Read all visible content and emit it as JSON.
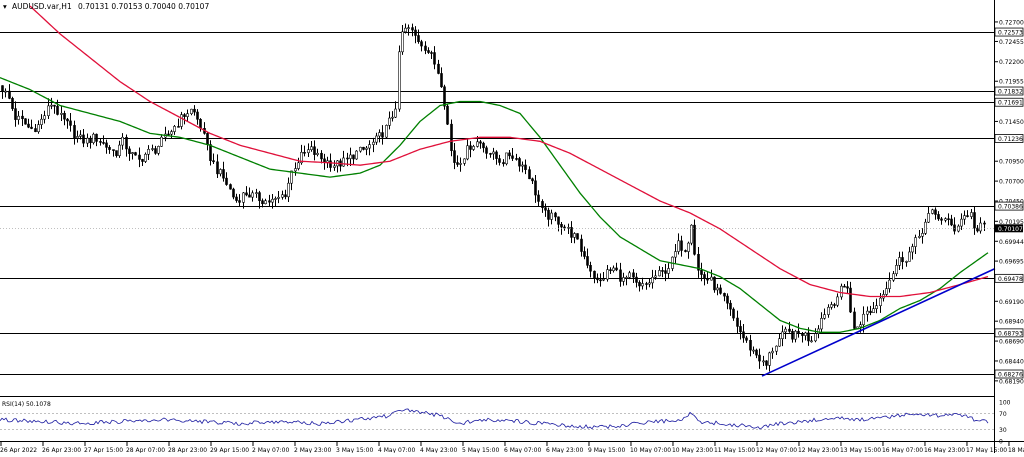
{
  "header": {
    "symbol_text": "AUDUSD.var,H1",
    "ohlc_text": "0.70131 0.70153 0.70040 0.70107"
  },
  "colors": {
    "background": "#ffffff",
    "candle_up": "#000000",
    "candle_down": "#000000",
    "ma_fast": "#008000",
    "ma_slow": "#e0103a",
    "trendline": "#0000cc",
    "hline": "#000000",
    "rsi_line": "#1a1aa0",
    "current_price_box": "#000000"
  },
  "chart_data": [
    {
      "type": "candlestick",
      "symbol": "AUDUSD.var",
      "timeframe": "H1",
      "ohlc_header": {
        "open": 0.70131,
        "high": 0.70153,
        "low": 0.7004,
        "close": 0.70107
      },
      "ylim": [
        0.6805,
        0.7285
      ],
      "y_ticks": [
        0.727,
        0.72455,
        0.722,
        0.71955,
        0.7145,
        0.7095,
        0.707,
        0.7045,
        0.70195,
        0.69944,
        0.69695,
        0.6919,
        0.6894,
        0.6869,
        0.6844,
        0.6819
      ],
      "x_tick_labels": [
        "26 Apr 2022",
        "26 Apr 23:00",
        "27 Apr 15:00",
        "28 Apr 07:00",
        "28 Apr 23:00",
        "29 Apr 15:00",
        "2 May 07:00",
        "2 May 23:00",
        "3 May 15:00",
        "4 May 07:00",
        "4 May 23:00",
        "5 May 15:00",
        "6 May 07:00",
        "6 May 23:00",
        "9 May 15:00",
        "10 May 07:00",
        "10 May 23:00",
        "11 May 15:00",
        "12 May 07:00",
        "12 May 23:00",
        "13 May 15:00",
        "16 May 07:00",
        "16 May 23:00",
        "17 May 15:00",
        "18 May 07:00"
      ],
      "horizontal_levels": [
        0.72573,
        0.71832,
        0.71691,
        0.71236,
        0.70386,
        0.69478,
        0.68793,
        0.68276
      ],
      "current_price": 0.70107,
      "close_path": [
        [
          0,
          0.719
        ],
        [
          8,
          0.7175
        ],
        [
          15,
          0.715
        ],
        [
          22,
          0.7145
        ],
        [
          30,
          0.7135
        ],
        [
          38,
          0.714
        ],
        [
          45,
          0.7155
        ],
        [
          52,
          0.717
        ],
        [
          60,
          0.715
        ],
        [
          68,
          0.714
        ],
        [
          76,
          0.7125
        ],
        [
          85,
          0.712
        ],
        [
          95,
          0.7125
        ],
        [
          105,
          0.7115
        ],
        [
          115,
          0.7105
        ],
        [
          122,
          0.712
        ],
        [
          130,
          0.7105
        ],
        [
          138,
          0.7095
        ],
        [
          146,
          0.7105
        ],
        [
          155,
          0.711
        ],
        [
          165,
          0.7125
        ],
        [
          175,
          0.714
        ],
        [
          185,
          0.7155
        ],
        [
          192,
          0.716
        ],
        [
          200,
          0.714
        ],
        [
          208,
          0.7105
        ],
        [
          216,
          0.7085
        ],
        [
          225,
          0.707
        ],
        [
          235,
          0.7045
        ],
        [
          245,
          0.7055
        ],
        [
          255,
          0.705
        ],
        [
          265,
          0.7045
        ],
        [
          275,
          0.7045
        ],
        [
          285,
          0.7055
        ],
        [
          292,
          0.7085
        ],
        [
          300,
          0.71
        ],
        [
          310,
          0.711
        ],
        [
          318,
          0.71
        ],
        [
          326,
          0.7095
        ],
        [
          335,
          0.709
        ],
        [
          345,
          0.7095
        ],
        [
          355,
          0.7105
        ],
        [
          365,
          0.711
        ],
        [
          375,
          0.712
        ],
        [
          385,
          0.7135
        ],
        [
          395,
          0.716
        ],
        [
          400,
          0.7255
        ],
        [
          408,
          0.7262
        ],
        [
          416,
          0.725
        ],
        [
          424,
          0.724
        ],
        [
          432,
          0.7225
        ],
        [
          440,
          0.72
        ],
        [
          446,
          0.7155
        ],
        [
          450,
          0.711
        ],
        [
          455,
          0.709
        ],
        [
          462,
          0.71
        ],
        [
          470,
          0.7115
        ],
        [
          478,
          0.712
        ],
        [
          486,
          0.711
        ],
        [
          494,
          0.71
        ],
        [
          502,
          0.7095
        ],
        [
          510,
          0.7105
        ],
        [
          518,
          0.7095
        ],
        [
          526,
          0.7085
        ],
        [
          534,
          0.706
        ],
        [
          542,
          0.703
        ],
        [
          550,
          0.7025
        ],
        [
          558,
          0.702
        ],
        [
          566,
          0.701
        ],
        [
          574,
          0.7
        ],
        [
          582,
          0.698
        ],
        [
          590,
          0.696
        ],
        [
          598,
          0.694
        ],
        [
          606,
          0.6955
        ],
        [
          614,
          0.696
        ],
        [
          622,
          0.6945
        ],
        [
          630,
          0.695
        ],
        [
          638,
          0.6935
        ],
        [
          646,
          0.694
        ],
        [
          654,
          0.695
        ],
        [
          662,
          0.6955
        ],
        [
          670,
          0.6965
        ],
        [
          678,
          0.699
        ],
        [
          686,
          0.6985
        ],
        [
          691,
          0.702
        ],
        [
          696,
          0.696
        ],
        [
          702,
          0.695
        ],
        [
          710,
          0.6945
        ],
        [
          718,
          0.693
        ],
        [
          726,
          0.6915
        ],
        [
          734,
          0.6895
        ],
        [
          742,
          0.6875
        ],
        [
          750,
          0.686
        ],
        [
          758,
          0.685
        ],
        [
          765,
          0.6835
        ],
        [
          770,
          0.6855
        ],
        [
          778,
          0.687
        ],
        [
          786,
          0.688
        ],
        [
          794,
          0.6875
        ],
        [
          802,
          0.688
        ],
        [
          810,
          0.687
        ],
        [
          818,
          0.689
        ],
        [
          826,
          0.691
        ],
        [
          834,
          0.692
        ],
        [
          842,
          0.6935
        ],
        [
          848,
          0.694
        ],
        [
          852,
          0.688
        ],
        [
          858,
          0.689
        ],
        [
          866,
          0.6905
        ],
        [
          874,
          0.691
        ],
        [
          882,
          0.693
        ],
        [
          890,
          0.695
        ],
        [
          898,
          0.697
        ],
        [
          906,
          0.6975
        ],
        [
          914,
          0.699
        ],
        [
          922,
          0.701
        ],
        [
          930,
          0.703
        ],
        [
          938,
          0.7025
        ],
        [
          946,
          0.702
        ],
        [
          954,
          0.701
        ],
        [
          962,
          0.7025
        ],
        [
          970,
          0.703
        ],
        [
          976,
          0.7005
        ],
        [
          982,
          0.7015
        ],
        [
          988,
          0.7011
        ]
      ],
      "ma_fast_path": [
        [
          0,
          0.72
        ],
        [
          30,
          0.7185
        ],
        [
          60,
          0.7165
        ],
        [
          90,
          0.7155
        ],
        [
          120,
          0.7145
        ],
        [
          150,
          0.713
        ],
        [
          180,
          0.7125
        ],
        [
          210,
          0.7115
        ],
        [
          240,
          0.71
        ],
        [
          270,
          0.7085
        ],
        [
          300,
          0.708
        ],
        [
          330,
          0.7075
        ],
        [
          360,
          0.708
        ],
        [
          380,
          0.709
        ],
        [
          400,
          0.7115
        ],
        [
          420,
          0.7145
        ],
        [
          440,
          0.7165
        ],
        [
          460,
          0.717
        ],
        [
          480,
          0.717
        ],
        [
          500,
          0.7165
        ],
        [
          520,
          0.7155
        ],
        [
          540,
          0.7125
        ],
        [
          560,
          0.709
        ],
        [
          580,
          0.7055
        ],
        [
          600,
          0.7025
        ],
        [
          620,
          0.7
        ],
        [
          640,
          0.6985
        ],
        [
          660,
          0.697
        ],
        [
          680,
          0.6965
        ],
        [
          700,
          0.696
        ],
        [
          720,
          0.695
        ],
        [
          740,
          0.6935
        ],
        [
          760,
          0.6915
        ],
        [
          780,
          0.6895
        ],
        [
          800,
          0.6885
        ],
        [
          820,
          0.688
        ],
        [
          840,
          0.688
        ],
        [
          860,
          0.6885
        ],
        [
          880,
          0.6895
        ],
        [
          900,
          0.691
        ],
        [
          920,
          0.692
        ],
        [
          940,
          0.6935
        ],
        [
          960,
          0.6955
        ],
        [
          988,
          0.698
        ]
      ],
      "ma_slow_path": [
        [
          30,
          0.729
        ],
        [
          60,
          0.7255
        ],
        [
          90,
          0.7225
        ],
        [
          120,
          0.7195
        ],
        [
          150,
          0.717
        ],
        [
          180,
          0.715
        ],
        [
          210,
          0.713
        ],
        [
          240,
          0.7115
        ],
        [
          270,
          0.7105
        ],
        [
          300,
          0.7095
        ],
        [
          330,
          0.7093
        ],
        [
          360,
          0.709
        ],
        [
          390,
          0.7095
        ],
        [
          420,
          0.711
        ],
        [
          450,
          0.712
        ],
        [
          480,
          0.7125
        ],
        [
          510,
          0.7125
        ],
        [
          540,
          0.712
        ],
        [
          570,
          0.7105
        ],
        [
          600,
          0.7085
        ],
        [
          630,
          0.7065
        ],
        [
          660,
          0.7045
        ],
        [
          690,
          0.703
        ],
        [
          720,
          0.701
        ],
        [
          750,
          0.6985
        ],
        [
          780,
          0.696
        ],
        [
          810,
          0.694
        ],
        [
          840,
          0.693
        ],
        [
          870,
          0.6925
        ],
        [
          900,
          0.6925
        ],
        [
          930,
          0.693
        ],
        [
          960,
          0.694
        ],
        [
          988,
          0.695
        ]
      ],
      "trendline": [
        [
          762,
          0.6825
        ],
        [
          995,
          0.696
        ]
      ],
      "rsi": {
        "label": "RSI(14) 50.1078",
        "period": 14,
        "value": 50.1078,
        "levels": [
          70,
          30
        ],
        "ylim": [
          0,
          100
        ],
        "y_tick_labels": [
          "100",
          "70",
          "30",
          "0"
        ],
        "path": [
          [
            0,
            55
          ],
          [
            40,
            50
          ],
          [
            80,
            45
          ],
          [
            120,
            50
          ],
          [
            160,
            55
          ],
          [
            200,
            50
          ],
          [
            240,
            45
          ],
          [
            280,
            50
          ],
          [
            320,
            45
          ],
          [
            360,
            55
          ],
          [
            390,
            65
          ],
          [
            400,
            80
          ],
          [
            420,
            75
          ],
          [
            440,
            65
          ],
          [
            460,
            45
          ],
          [
            480,
            55
          ],
          [
            520,
            50
          ],
          [
            560,
            40
          ],
          [
            600,
            35
          ],
          [
            640,
            45
          ],
          [
            680,
            55
          ],
          [
            690,
            70
          ],
          [
            700,
            50
          ],
          [
            720,
            45
          ],
          [
            740,
            40
          ],
          [
            760,
            35
          ],
          [
            780,
            45
          ],
          [
            800,
            50
          ],
          [
            820,
            55
          ],
          [
            840,
            60
          ],
          [
            860,
            55
          ],
          [
            880,
            60
          ],
          [
            900,
            65
          ],
          [
            920,
            70
          ],
          [
            940,
            65
          ],
          [
            960,
            68
          ],
          [
            975,
            55
          ],
          [
            988,
            50
          ]
        ]
      }
    }
  ]
}
